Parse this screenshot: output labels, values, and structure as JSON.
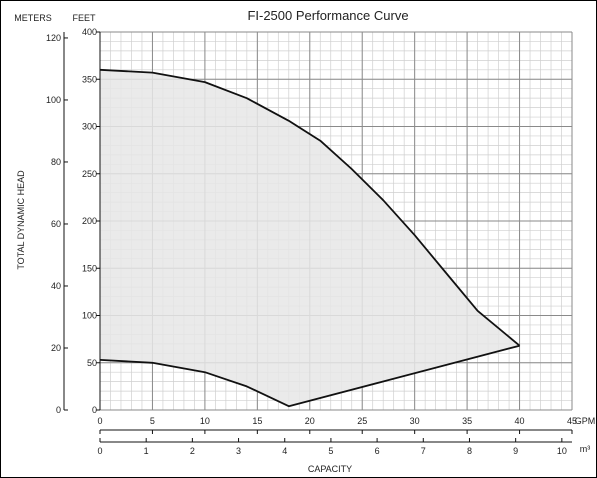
{
  "chart_data": {
    "type": "area",
    "title": "FI-2500 Performance Curve",
    "left_axis_label": "TOTAL DYNAMIC HEAD",
    "meters_label": "METERS",
    "feet_label": "FEET",
    "xlabel": "CAPACITY",
    "gpm_label": "GPM",
    "m3_label": "m³",
    "feet_range": [
      0,
      400
    ],
    "meters_range": [
      0,
      121.92
    ],
    "gpm_range": [
      0,
      45
    ],
    "m3_range": [
      0,
      10.22
    ],
    "feet_ticks": [
      0,
      50,
      100,
      150,
      200,
      250,
      300,
      350,
      400
    ],
    "meters_ticks": [
      0,
      20,
      40,
      60,
      80,
      100,
      120
    ],
    "gpm_ticks": [
      0,
      5,
      10,
      15,
      20,
      25,
      30,
      35,
      40,
      45
    ],
    "m3_ticks": [
      0,
      1,
      2,
      3,
      4,
      5,
      6,
      7,
      8,
      9,
      10
    ],
    "grid": true,
    "region_color": "#e6e6e6",
    "series": [
      {
        "values_gpm": [
          0,
          5,
          10,
          14,
          18,
          21,
          24,
          27,
          30,
          33,
          36,
          40
        ],
        "values_feet": [
          360,
          357,
          347,
          330,
          306,
          285,
          255,
          222,
          185,
          145,
          105,
          68
        ]
      },
      {
        "values_gpm": [
          0,
          5,
          10,
          14,
          18,
          40
        ],
        "values_feet": [
          53,
          50,
          40,
          25,
          4,
          68
        ]
      }
    ]
  }
}
